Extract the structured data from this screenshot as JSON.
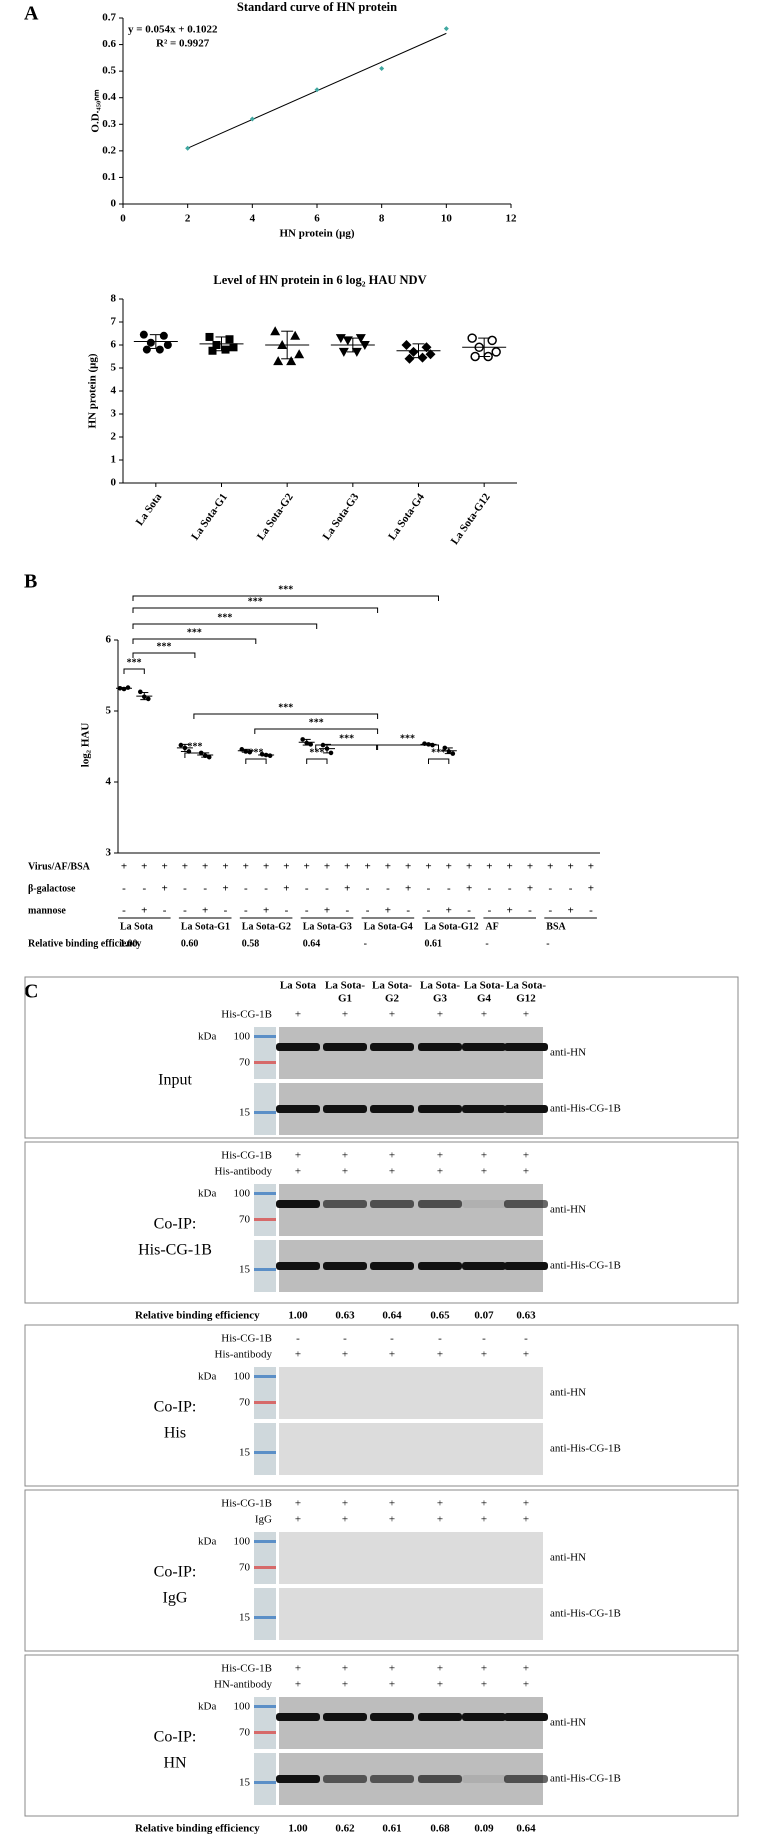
{
  "panel_labels": [
    "A",
    "B",
    "C"
  ],
  "chart_data": [
    {
      "type": "scatter",
      "title": "Standard curve of HN protein",
      "xlabel": "HN protein (μg)",
      "ylabel": "O.D.₄₅₀ₙₘ",
      "x": [
        2,
        4,
        6,
        8,
        10
      ],
      "values": [
        0.21,
        0.32,
        0.43,
        0.51,
        0.66
      ],
      "color": "#3fa7a0",
      "trendline": {
        "slope": 0.054,
        "intercept": 0.1022,
        "color": "#000000"
      },
      "annotations": [
        "y = 0.054x + 0.1022",
        "R² = 0.9927"
      ],
      "xlim": [
        0,
        12
      ],
      "xticks": [
        0,
        2,
        4,
        6,
        8,
        10,
        12
      ],
      "ylim": [
        0,
        0.7
      ],
      "yticks": [
        0,
        0.1,
        0.2,
        0.3,
        0.4,
        0.5,
        0.6,
        0.7
      ]
    },
    {
      "type": "dot",
      "title": "Level of HN protein in 6 log₂ HAU NDV",
      "ylabel": "HN protein (μg)",
      "categories": [
        "La Sota",
        "La Sota-G1",
        "La Sota-G2",
        "La Sota-G3",
        "La Sota-G4",
        "La Sota-G12"
      ],
      "points": [
        [
          6.45,
          6.4,
          6.1,
          6.0,
          5.8,
          5.8
        ],
        [
          6.35,
          6.25,
          6.0,
          5.9,
          5.75,
          5.8
        ],
        [
          6.6,
          6.4,
          6.0,
          5.6,
          5.3,
          5.3
        ],
        [
          6.3,
          6.3,
          6.2,
          6.0,
          5.7,
          5.7
        ],
        [
          6.0,
          5.9,
          5.7,
          5.6,
          5.4,
          5.45
        ],
        [
          6.3,
          6.2,
          5.9,
          5.7,
          5.5,
          5.5
        ]
      ],
      "mean": [
        6.15,
        6.05,
        6.0,
        6.0,
        5.75,
        5.9
      ],
      "sd": [
        0.3,
        0.3,
        0.6,
        0.3,
        0.3,
        0.4
      ],
      "markers": [
        "circle",
        "square",
        "triangle",
        "triangle-down",
        "diamond",
        "circle-open"
      ],
      "color": "#000000",
      "ylim": [
        0,
        8
      ],
      "yticks": [
        0,
        1,
        2,
        3,
        4,
        5,
        6,
        7,
        8
      ]
    },
    {
      "type": "dot-table",
      "ylabel": "log₂ HAU",
      "ylim": [
        3,
        6
      ],
      "yticks": [
        3,
        4,
        5,
        6
      ],
      "color": "#000000",
      "points": [
        [
          5.32,
          5.31,
          5.33
        ],
        [
          5.27,
          5.2,
          5.17
        ],
        null,
        [
          4.52,
          4.48,
          4.43
        ],
        [
          4.41,
          4.37,
          4.35
        ],
        null,
        [
          4.46,
          4.43,
          4.42
        ],
        [
          4.39,
          4.38,
          4.37
        ],
        null,
        [
          4.6,
          4.55,
          4.53
        ],
        [
          4.52,
          4.47,
          4.41
        ],
        null,
        null,
        null,
        null,
        [
          4.54,
          4.53,
          4.52
        ],
        [
          4.48,
          4.43,
          4.4
        ],
        null,
        null,
        null,
        null,
        null,
        null,
        null
      ],
      "mean": [
        5.32,
        5.21,
        null,
        4.48,
        4.38,
        null,
        4.44,
        4.38,
        null,
        4.56,
        4.47,
        null,
        null,
        null,
        null,
        4.53,
        4.44,
        null,
        null,
        null,
        null,
        null,
        null,
        null
      ],
      "sd": [
        0.01,
        0.05,
        null,
        0.05,
        0.03,
        null,
        0.02,
        0.01,
        null,
        0.04,
        0.06,
        null,
        null,
        null,
        null,
        0.01,
        0.04,
        null,
        null,
        null,
        null,
        null,
        null,
        null
      ],
      "brackets": [
        {
          "from": 0,
          "to": 15,
          "label": "***"
        },
        {
          "from": 0,
          "to": 12,
          "label": "***"
        },
        {
          "from": 0,
          "to": 9,
          "label": "***"
        },
        {
          "from": 0,
          "to": 6,
          "label": "***"
        },
        {
          "from": 0,
          "to": 3,
          "label": "***"
        },
        {
          "from": 0,
          "to": 1,
          "label": "***"
        },
        {
          "from": 3,
          "to": 12,
          "label": "***"
        },
        {
          "from": 6,
          "to": 12,
          "label": "***"
        },
        {
          "from": 9,
          "to": 12,
          "label": "***"
        },
        {
          "from": 9,
          "to": 10,
          "label": "***"
        },
        {
          "from": 12,
          "to": 15,
          "label": "***"
        },
        {
          "from": 15,
          "to": 16,
          "label": "***"
        },
        {
          "from": 3,
          "to": 4,
          "label": "***"
        },
        {
          "from": 6,
          "to": 7,
          "label": "***"
        }
      ],
      "rows": [
        {
          "label": "Virus/AF/BSA",
          "cells": [
            "+",
            "+",
            "+",
            "+",
            "+",
            "+",
            "+",
            "+",
            "+",
            "+",
            "+",
            "+",
            "+",
            "+",
            "+",
            "+",
            "+",
            "+",
            "+",
            "+",
            "+",
            "+",
            "+",
            "+"
          ]
        },
        {
          "label": "β-galactose",
          "cells": [
            "-",
            "-",
            "+",
            "-",
            "-",
            "+",
            "-",
            "-",
            "+",
            "-",
            "-",
            "+",
            "-",
            "-",
            "+",
            "-",
            "-",
            "+",
            "-",
            "-",
            "+",
            "-",
            "-",
            "+"
          ]
        },
        {
          "label": "mannose",
          "cells": [
            "-",
            "+",
            "-",
            "-",
            "+",
            "-",
            "-",
            "+",
            "-",
            "-",
            "+",
            "-",
            "-",
            "+",
            "-",
            "-",
            "+",
            "-",
            "-",
            "+",
            "-",
            "-",
            "+",
            "-"
          ]
        }
      ],
      "groups": [
        "La Sota",
        "La Sota-G1",
        "La Sota-G2",
        "La Sota-G3",
        "La Sota-G4",
        "La Sota-G12",
        "AF",
        "BSA"
      ],
      "efficiency": {
        "label": "Relative binding efficiency",
        "cells": [
          "1.00",
          "0.60",
          "0.58",
          "0.64",
          "-",
          "0.61",
          "-",
          "-"
        ]
      }
    }
  ],
  "blot": {
    "lanes_top": [
      "La Sota",
      "La Sota-",
      "La Sota-",
      "La Sota-",
      "La Sota-",
      "La Sota-"
    ],
    "lanes_bottom": [
      null,
      "G1",
      "G2",
      "G3",
      "G4",
      "G12"
    ],
    "blocks": [
      {
        "title": [
          "Input"
        ],
        "rows": [
          {
            "label": "His-CG-1B",
            "cells": [
              "+",
              "+",
              "+",
              "+",
              "+",
              "+"
            ]
          }
        ],
        "kda": "kDa",
        "markers": [
          "100",
          "70",
          "15"
        ],
        "bands": [
          "anti-HN",
          "anti-His-CG-1B"
        ]
      },
      {
        "title": [
          "Co-IP:",
          "His-CG-1B"
        ],
        "rows": [
          {
            "label": "His-CG-1B",
            "cells": [
              "+",
              "+",
              "+",
              "+",
              "+",
              "+"
            ]
          },
          {
            "label": "His-antibody",
            "cells": [
              "+",
              "+",
              "+",
              "+",
              "+",
              "+"
            ]
          }
        ],
        "kda": "kDa",
        "markers": [
          "100",
          "70",
          "15"
        ],
        "bands": [
          "anti-HN",
          "anti-His-CG-1B"
        ],
        "efficiency": {
          "label": "Relative binding efficiency",
          "values": [
            1,
            0.63,
            0.64,
            0.65,
            0.07,
            0.63
          ],
          "value_labels": [
            "1.00",
            "0.63",
            "0.64",
            "0.65",
            "0.07",
            "0.63"
          ]
        }
      },
      {
        "title": [
          "Co-IP:",
          "His"
        ],
        "rows": [
          {
            "label": "His-CG-1B",
            "cells": [
              "-",
              "-",
              "-",
              "-",
              "-",
              "-"
            ]
          },
          {
            "label": "His-antibody",
            "cells": [
              "+",
              "+",
              "+",
              "+",
              "+",
              "+"
            ]
          }
        ],
        "kda": "kDa",
        "markers": [
          "100",
          "70",
          "15"
        ],
        "bands": [
          "anti-HN",
          "anti-His-CG-1B"
        ]
      },
      {
        "title": [
          "Co-IP:",
          "IgG"
        ],
        "rows": [
          {
            "label": "His-CG-1B",
            "cells": [
              "+",
              "+",
              "+",
              "+",
              "+",
              "+"
            ]
          },
          {
            "label": "IgG",
            "cells": [
              "+",
              "+",
              "+",
              "+",
              "+",
              "+"
            ]
          }
        ],
        "kda": "kDa",
        "markers": [
          "100",
          "70",
          "15"
        ],
        "bands": [
          "anti-HN",
          "anti-His-CG-1B"
        ]
      },
      {
        "title": [
          "Co-IP:",
          "HN"
        ],
        "rows": [
          {
            "label": "His-CG-1B",
            "cells": [
              "+",
              "+",
              "+",
              "+",
              "+",
              "+"
            ]
          },
          {
            "label": "HN-antibody",
            "cells": [
              "+",
              "+",
              "+",
              "+",
              "+",
              "+"
            ]
          }
        ],
        "kda": "kDa",
        "markers": [
          "100",
          "70",
          "15"
        ],
        "bands": [
          "anti-HN",
          "anti-His-CG-1B"
        ],
        "efficiency": {
          "label": "Relative binding efficiency",
          "values": [
            1,
            0.62,
            0.61,
            0.68,
            0.09,
            0.64
          ],
          "value_labels": [
            "1.00",
            "0.62",
            "0.61",
            "0.68",
            "0.09",
            "0.64"
          ]
        }
      }
    ]
  }
}
